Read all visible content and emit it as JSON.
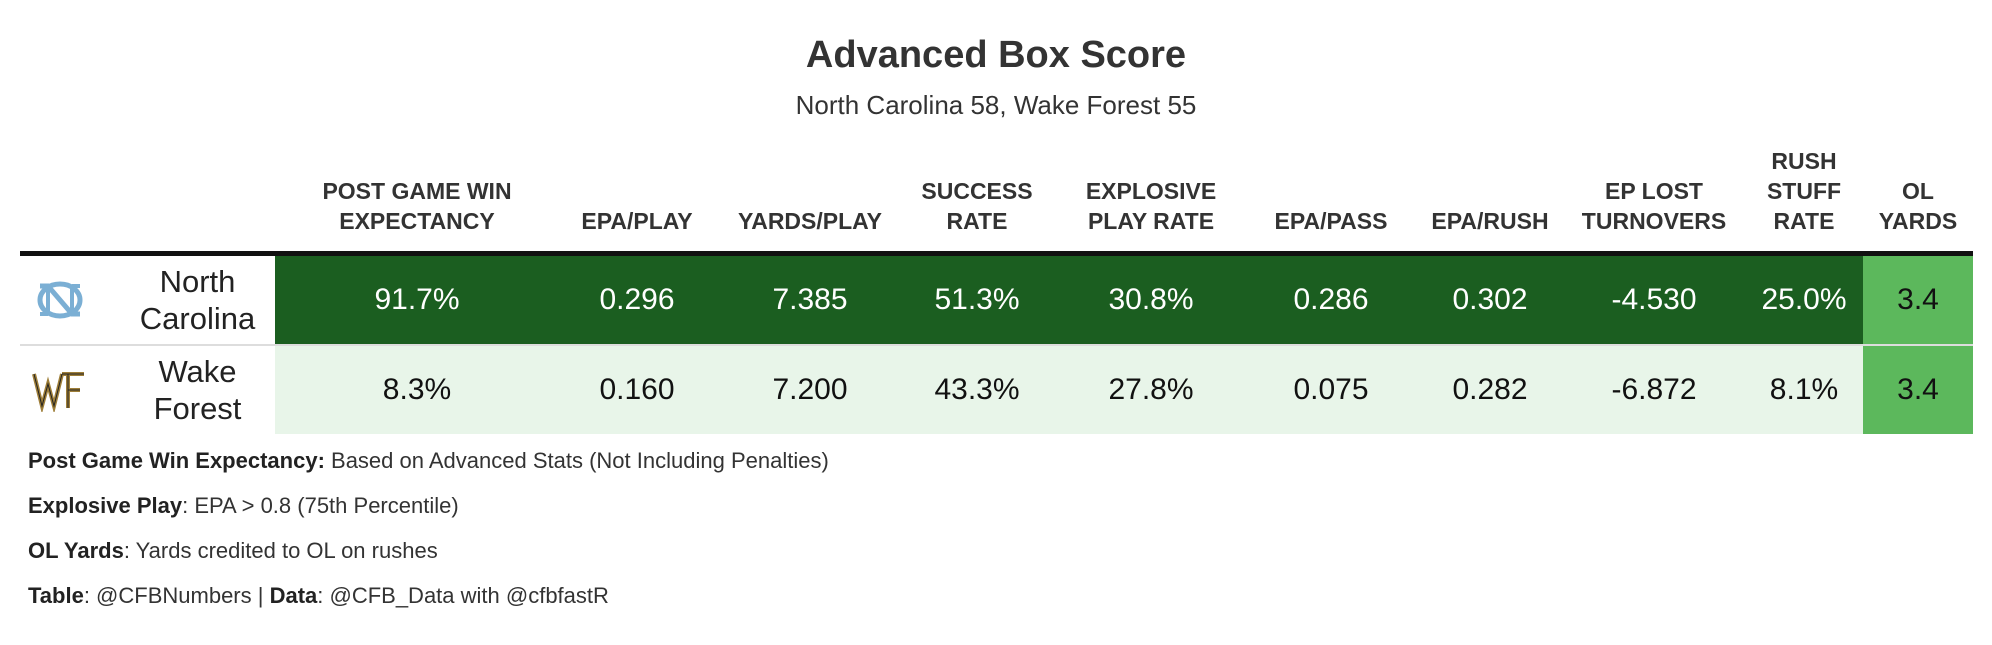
{
  "title": "Advanced Box Score",
  "subtitle": "North Carolina 58, Wake Forest 55",
  "colors": {
    "unc_band": "#1b5e20",
    "wf_band": "#e8f5e9",
    "ol_cell": "#5cb85c",
    "unc_blue": "#7bafd4",
    "wf_gold": "#9e7e38"
  },
  "chart_data": {
    "type": "table",
    "columns": [
      [
        "POST GAME WIN",
        "EXPECTANCY"
      ],
      [
        "EPA/PLAY"
      ],
      [
        "YARDS/PLAY"
      ],
      [
        "SUCCESS",
        "RATE"
      ],
      [
        "EXPLOSIVE",
        "PLAY RATE"
      ],
      [
        "EPA/PASS"
      ],
      [
        "EPA/RUSH"
      ],
      [
        "EP LOST",
        "TURNOVERS"
      ],
      [
        "RUSH",
        "STUFF",
        "RATE"
      ],
      [
        "OL",
        "YARDS"
      ]
    ],
    "rows": [
      {
        "team": [
          "North",
          "Carolina"
        ],
        "logo": "unc-logo",
        "values": [
          "91.7%",
          "0.296",
          "7.385",
          "51.3%",
          "30.8%",
          "0.286",
          "0.302",
          "-4.530",
          "25.0%",
          "3.4"
        ]
      },
      {
        "team": [
          "Wake",
          "Forest"
        ],
        "logo": "wf-logo",
        "values": [
          "8.3%",
          "0.160",
          "7.200",
          "43.3%",
          "27.8%",
          "0.075",
          "0.282",
          "-6.872",
          "8.1%",
          "3.4"
        ]
      }
    ]
  },
  "notes": [
    {
      "label": "Post Game Win Expectancy:",
      "text": " Based on Advanced Stats (Not Including Penalties)"
    },
    {
      "label": "Explosive Play",
      "text": ": EPA > 0.8 (75th Percentile)"
    },
    {
      "label": "OL Yards",
      "text": ": Yards credited to OL on rushes"
    }
  ],
  "credit": {
    "table_label": "Table",
    "table_text": ": @CFBNumbers | ",
    "data_label": "Data",
    "data_text": ": @CFB_Data with @cfbfastR"
  }
}
